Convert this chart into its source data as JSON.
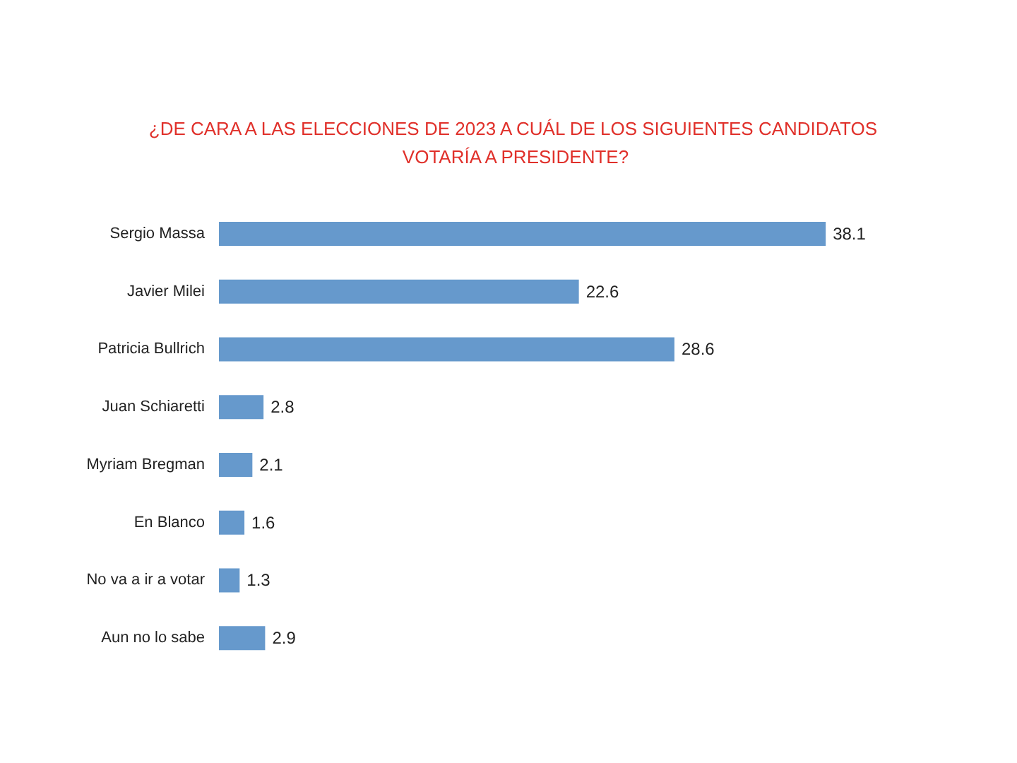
{
  "chart_data": {
    "type": "bar",
    "orientation": "horizontal",
    "title": "¿DE CARA A LAS ELECCIONES DE 2023 A CUÁL DE LOS SIGUIENTES CANDIDATOS VOTARÍA A PRESIDENTE?",
    "categories": [
      "Sergio Massa",
      "Javier Milei",
      "Patricia Bullrich",
      "Juan Schiaretti",
      "Myriam Bregman",
      "En Blanco",
      "No va a ir a votar",
      "Aun no lo sabe"
    ],
    "values": [
      38.1,
      22.6,
      28.6,
      2.8,
      2.1,
      1.6,
      1.3,
      2.9
    ],
    "color": "#6699cc",
    "data_labels": true,
    "tick_labels": "y"
  }
}
